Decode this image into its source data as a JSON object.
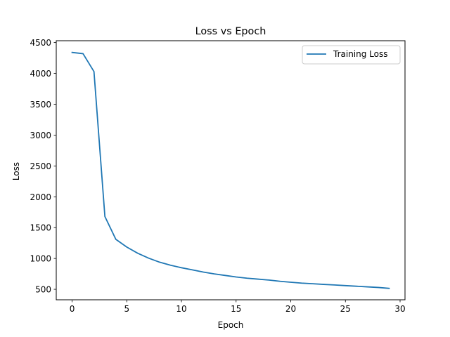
{
  "chart_data": {
    "type": "line",
    "title": "Loss vs Epoch",
    "xlabel": "Epoch",
    "ylabel": "Loss",
    "xlim": [
      -1.45,
      30.45
    ],
    "ylim": [
      330,
      4530
    ],
    "xticks": [
      0,
      5,
      10,
      15,
      20,
      25,
      30
    ],
    "yticks": [
      500,
      1000,
      1500,
      2000,
      2500,
      3000,
      3500,
      4000,
      4500
    ],
    "grid": false,
    "legend_position": "top-right",
    "series": [
      {
        "name": "Training Loss",
        "color": "#1f77b4",
        "x": [
          0,
          1,
          2,
          3,
          4,
          5,
          6,
          7,
          8,
          9,
          10,
          11,
          12,
          13,
          14,
          15,
          16,
          17,
          18,
          19,
          20,
          21,
          22,
          23,
          24,
          25,
          26,
          27,
          28,
          29
        ],
        "values": [
          4340,
          4320,
          4030,
          1680,
          1310,
          1185,
          1085,
          1005,
          940,
          890,
          850,
          815,
          780,
          750,
          725,
          700,
          680,
          665,
          650,
          630,
          615,
          600,
          590,
          580,
          570,
          560,
          550,
          540,
          530,
          515
        ]
      }
    ]
  }
}
